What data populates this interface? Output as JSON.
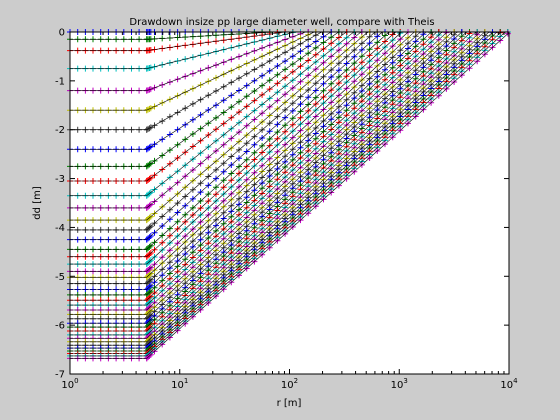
{
  "chart_data": {
    "type": "line",
    "title": "Drawdown insize pp large diameter well, compare with Theis",
    "xlabel": "r [m]",
    "ylabel": "dd [m]",
    "xscale": "log",
    "xlim": [
      1,
      10000
    ],
    "ylim": [
      -7,
      0
    ],
    "grid": false,
    "legend": "none",
    "x_ticks": [
      {
        "base": "10",
        "exp": "0"
      },
      {
        "base": "10",
        "exp": "1"
      },
      {
        "base": "10",
        "exp": "2"
      },
      {
        "base": "10",
        "exp": "3"
      },
      {
        "base": "10",
        "exp": "4"
      }
    ],
    "x_tick_values": [
      1,
      10,
      100,
      1000,
      10000
    ],
    "y_ticks": [
      "-7",
      "-6",
      "-5",
      "-4",
      "-3",
      "-2",
      "-1",
      "0"
    ],
    "y_tick_values": [
      -7,
      -6,
      -5,
      -4,
      -3,
      -2,
      -1,
      0
    ],
    "well_radius": 5,
    "n_series": 40,
    "marker": "+",
    "theis_line_color": "#000000",
    "marker_colors": [
      "#0000ff",
      "#008000",
      "#ff0000",
      "#00bfbf",
      "#bf00bf",
      "#bfbf00",
      "#404040"
    ],
    "series": [
      {
        "level": -0.0,
        "front": 7
      },
      {
        "level": -0.15,
        "front": 10
      },
      {
        "level": -0.38,
        "front": 13
      },
      {
        "level": -0.75,
        "front": 16
      },
      {
        "level": -1.2,
        "front": 20
      },
      {
        "level": -1.6,
        "front": 24
      },
      {
        "level": -2.0,
        "front": 28
      },
      {
        "level": -2.4,
        "front": 34
      },
      {
        "level": -2.75,
        "front": 40
      },
      {
        "level": -3.05,
        "front": 47
      },
      {
        "level": -3.35,
        "front": 55
      },
      {
        "level": -3.6,
        "front": 64
      },
      {
        "level": -3.85,
        "front": 74
      },
      {
        "level": -4.05,
        "front": 86
      },
      {
        "level": -4.25,
        "front": 100
      },
      {
        "level": -4.45,
        "front": 115
      },
      {
        "level": -4.6,
        "front": 132
      },
      {
        "level": -4.75,
        "front": 150
      },
      {
        "level": -4.9,
        "front": 172
      },
      {
        "level": -5.02,
        "front": 196
      },
      {
        "level": -5.15,
        "front": 222
      },
      {
        "level": -5.27,
        "front": 250
      },
      {
        "level": -5.38,
        "front": 280
      },
      {
        "level": -5.49,
        "front": 313
      },
      {
        "level": -5.59,
        "front": 350
      },
      {
        "level": -5.69,
        "front": 390
      },
      {
        "level": -5.78,
        "front": 433
      },
      {
        "level": -5.87,
        "front": 480
      },
      {
        "level": -5.96,
        "front": 530
      },
      {
        "level": -6.04,
        "front": 585
      },
      {
        "level": -6.12,
        "front": 645
      },
      {
        "level": -6.2,
        "front": 710
      },
      {
        "level": -6.27,
        "front": 780
      },
      {
        "level": -6.34,
        "front": 855
      },
      {
        "level": -6.41,
        "front": 935
      },
      {
        "level": -6.47,
        "front": 1020
      },
      {
        "level": -6.53,
        "front": 1110
      },
      {
        "level": -6.58,
        "front": 1210
      },
      {
        "level": -6.63,
        "front": 1320
      },
      {
        "level": -6.68,
        "front": 1450
      }
    ]
  }
}
